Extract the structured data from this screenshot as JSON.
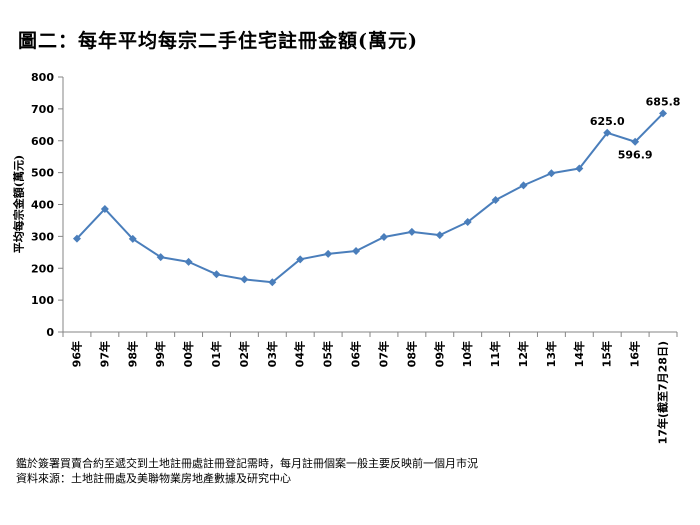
{
  "title": "圖二：每年平均每宗二手住宅註冊金額(萬元)",
  "chart_data": {
    "type": "line",
    "title": "圖二：每年平均每宗二手住宅註冊金額(萬元)",
    "ylabel": "平均每宗金額(萬元)",
    "xlabel": "",
    "ylim": [
      0,
      800
    ],
    "yticks": [
      0,
      100,
      200,
      300,
      400,
      500,
      600,
      700,
      800
    ],
    "grid": false,
    "categories": [
      "96年",
      "97年",
      "98年",
      "99年",
      "00年",
      "01年",
      "02年",
      "03年",
      "04年",
      "05年",
      "06年",
      "07年",
      "08年",
      "09年",
      "10年",
      "11年",
      "12年",
      "13年",
      "14年",
      "15年",
      "16年",
      "17年(截至7月28日)"
    ],
    "series": [
      {
        "color": "#4A7EBB",
        "values": [
          293,
          386,
          292,
          235,
          220,
          181,
          165,
          156,
          228,
          245,
          254,
          298,
          314,
          304,
          345,
          414,
          460,
          498,
          513,
          625.0,
          596.9,
          685.8
        ]
      }
    ],
    "data_labels": [
      {
        "index": 19,
        "text": "625.0",
        "position": "above"
      },
      {
        "index": 20,
        "text": "596.9",
        "position": "below"
      },
      {
        "index": 21,
        "text": "685.8",
        "position": "above"
      }
    ]
  },
  "notes": {
    "line1": "鑑於簽署買賣合約至遞交到土地註冊處註冊登記需時，每月註冊個案一般主要反映前一個月市況",
    "line2": "資料來源：土地註冊處及美聯物業房地產數據及研究中心"
  }
}
